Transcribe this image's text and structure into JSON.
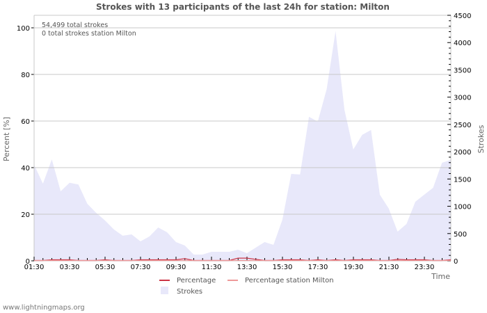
{
  "title": "Strokes with 13 participants of the last 24h for station: Milton",
  "info": {
    "total_strokes": "54,499 total strokes",
    "station_strokes": "0 total strokes station Milton"
  },
  "footer": "www.lightningmaps.org",
  "colors": {
    "strokes_fill": "#e8e8fa",
    "percentage": "#cc3344",
    "percentage_station": "#ee9999",
    "grid": "#c8c8c8",
    "axis": "#c8c8c8"
  },
  "legend": [
    {
      "label": "Percentage",
      "type": "line",
      "color": "#cc3344"
    },
    {
      "label": "Percentage station Milton",
      "type": "line",
      "color": "#ee9999"
    },
    {
      "label": "Strokes",
      "type": "area",
      "color": "#e8e8fa"
    }
  ],
  "chart_data": {
    "type": "area",
    "title": "Strokes with 13 participants of the last 24h for station: Milton",
    "xlabel": "Time",
    "ylabel": "Percent   [%]",
    "ylabel_right": "Strokes",
    "x_ticks": [
      "01:30",
      "03:30",
      "05:30",
      "07:30",
      "09:30",
      "11:30",
      "13:30",
      "15:30",
      "17:30",
      "19:30",
      "21:30",
      "23:30"
    ],
    "y_ticks_left": [
      0,
      20,
      40,
      60,
      80,
      100
    ],
    "y_ticks_right": [
      0,
      500,
      1000,
      1500,
      2000,
      2500,
      3000,
      3500,
      4000,
      4500
    ],
    "ylim_left": [
      0,
      105
    ],
    "ylim_right": [
      0,
      4500
    ],
    "grid": true,
    "legend_position": "bottom",
    "x": [
      "01:30",
      "02:00",
      "02:30",
      "03:00",
      "03:30",
      "04:00",
      "04:30",
      "05:00",
      "05:30",
      "06:00",
      "06:30",
      "07:00",
      "07:30",
      "08:00",
      "08:30",
      "09:00",
      "09:30",
      "10:00",
      "10:30",
      "11:00",
      "11:30",
      "12:00",
      "12:30",
      "13:00",
      "13:30",
      "14:00",
      "14:30",
      "15:00",
      "15:30",
      "16:00",
      "16:30",
      "17:00",
      "17:30",
      "18:00",
      "18:30",
      "19:00",
      "19:30",
      "20:00",
      "20:30",
      "21:00",
      "21:30",
      "22:00",
      "22:30",
      "23:00",
      "23:30",
      "24:00",
      "00:30",
      "00:50"
    ],
    "series": [
      {
        "name": "Strokes",
        "axis": "right",
        "values": [
          1760,
          1415,
          1860,
          1275,
          1430,
          1400,
          1045,
          880,
          740,
          575,
          460,
          485,
          357,
          446,
          612,
          523,
          344,
          280,
          115,
          115,
          166,
          166,
          166,
          204,
          140,
          242,
          344,
          293,
          753,
          1594,
          1582,
          2640,
          2551,
          3150,
          4209,
          2768,
          2041,
          2309,
          2398,
          1212,
          957,
          536,
          676,
          1084,
          1212,
          1339,
          1798,
          1850
        ]
      },
      {
        "name": "Percentage",
        "axis": "left",
        "values": [
          0,
          0,
          0.3,
          0.3,
          0.3,
          0,
          0,
          0,
          0.3,
          0,
          0,
          0,
          0.3,
          0.3,
          0.3,
          0.3,
          0.3,
          0.8,
          0,
          0,
          0,
          0,
          0,
          1,
          1,
          0.5,
          0,
          0,
          0.3,
          0.3,
          0.3,
          0,
          0.3,
          0,
          0.3,
          0,
          0.3,
          0.3,
          0.3,
          0,
          0,
          0.5,
          0.3,
          0.3,
          0.3,
          0,
          0,
          0.3
        ]
      },
      {
        "name": "Percentage station Milton",
        "axis": "left",
        "values": [
          0,
          0,
          0,
          0,
          0,
          0,
          0,
          0,
          0,
          0,
          0,
          0,
          0,
          0,
          0,
          0,
          0,
          0,
          0,
          0,
          0,
          0,
          0,
          0,
          0,
          0,
          0,
          0,
          0,
          0,
          0,
          0,
          0,
          0,
          0,
          0,
          0,
          0,
          0,
          0,
          0,
          0,
          0,
          0,
          0,
          0,
          0,
          0
        ]
      }
    ]
  }
}
